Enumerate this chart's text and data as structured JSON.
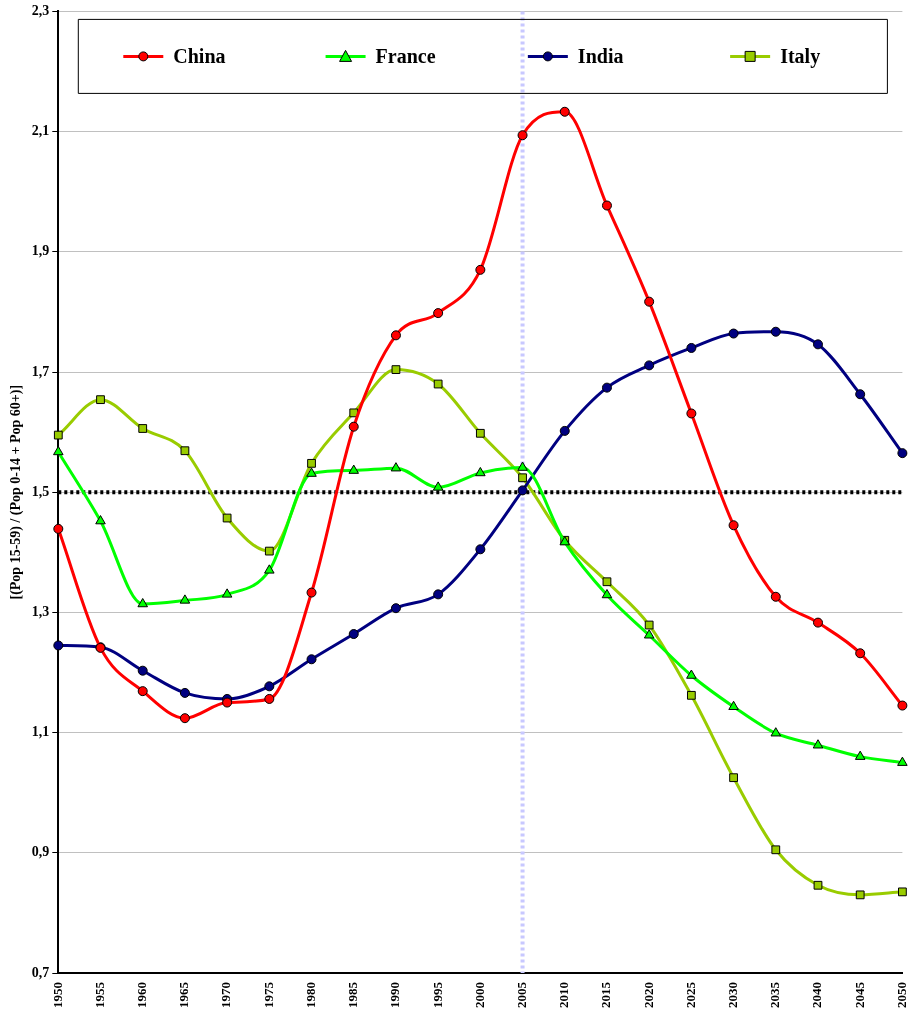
{
  "chart_data": {
    "type": "line",
    "ylabel": "[(Pop 15-59) / (Pop 0-14 + Pop 60+)]",
    "categories": [
      "1950",
      "1955",
      "1960",
      "1965",
      "1970",
      "1975",
      "1980",
      "1985",
      "1990",
      "1995",
      "2000",
      "2005",
      "2010",
      "2015",
      "2020",
      "2025",
      "2030",
      "2035",
      "2040",
      "2045",
      "2050"
    ],
    "series": [
      {
        "name": "China",
        "color": "#ff0000",
        "marker": "circle",
        "values": [
          1.439,
          1.241,
          1.169,
          1.124,
          1.15,
          1.156,
          1.333,
          1.609,
          1.761,
          1.798,
          1.87,
          2.094,
          2.133,
          1.977,
          1.817,
          1.631,
          1.445,
          1.326,
          1.283,
          1.232,
          1.145
        ]
      },
      {
        "name": "France",
        "color": "#00ff00",
        "marker": "triangle",
        "values": [
          1.567,
          1.452,
          1.314,
          1.32,
          1.33,
          1.37,
          1.531,
          1.536,
          1.54,
          1.508,
          1.532,
          1.541,
          1.417,
          1.329,
          1.262,
          1.195,
          1.143,
          1.099,
          1.079,
          1.06,
          1.05
        ]
      },
      {
        "name": "India",
        "color": "#000080",
        "marker": "circle",
        "values": [
          1.245,
          1.242,
          1.203,
          1.166,
          1.156,
          1.177,
          1.222,
          1.264,
          1.307,
          1.33,
          1.405,
          1.503,
          1.602,
          1.674,
          1.711,
          1.74,
          1.764,
          1.767,
          1.746,
          1.663,
          1.565
        ]
      },
      {
        "name": "Italy",
        "color": "#99cc00",
        "marker": "square",
        "values": [
          1.595,
          1.654,
          1.606,
          1.569,
          1.457,
          1.402,
          1.548,
          1.632,
          1.704,
          1.68,
          1.598,
          1.524,
          1.42,
          1.351,
          1.279,
          1.162,
          1.025,
          0.905,
          0.846,
          0.83,
          0.835
        ]
      }
    ],
    "ylim": [
      0.7,
      2.3
    ],
    "yticks": [
      {
        "value": 0.7,
        "label": "0,7"
      },
      {
        "value": 0.9,
        "label": "0,9"
      },
      {
        "value": 1.1,
        "label": "1,1"
      },
      {
        "value": 1.3,
        "label": "1,3"
      },
      {
        "value": 1.5,
        "label": "1,5"
      },
      {
        "value": 1.7,
        "label": "1,7"
      },
      {
        "value": 1.9,
        "label": "1,9"
      },
      {
        "value": 2.1,
        "label": "2,1"
      },
      {
        "value": 2.3,
        "label": "2,3"
      }
    ],
    "grid": "y",
    "legend": "top",
    "ref_lines": [
      {
        "axis": "y",
        "value": 1.5,
        "color": "#000000",
        "line_style": "dotted"
      },
      {
        "axis": "x",
        "value": "2005",
        "color": "#c8c8ff",
        "line_style": "dotted"
      }
    ]
  }
}
